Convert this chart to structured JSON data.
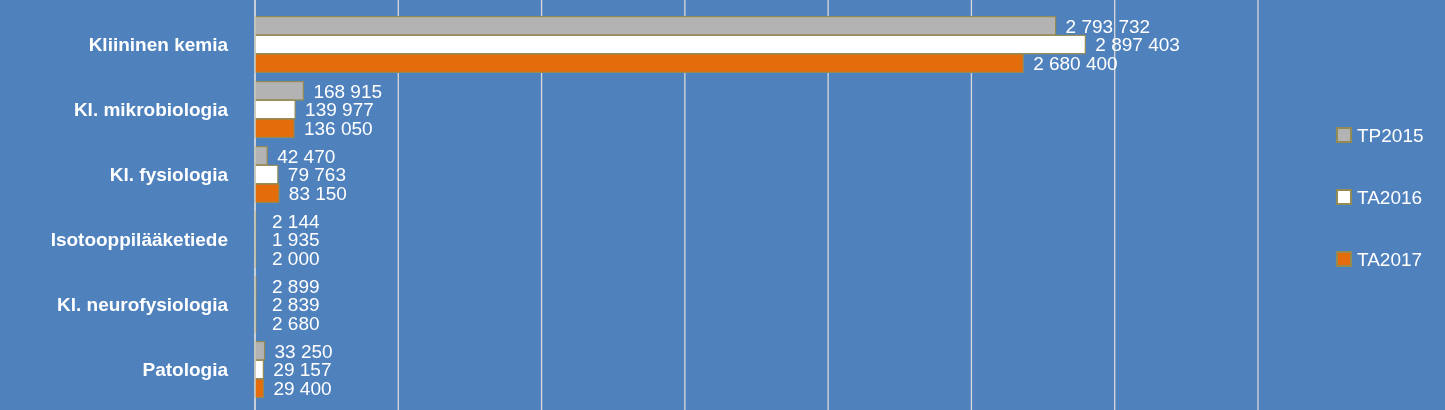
{
  "chart_data": {
    "type": "bar",
    "orientation": "horizontal",
    "categories": [
      "Kliininen kemia",
      "Kl. mikrobiologia",
      "Kl. fysiologia",
      "Isotooppilääketiede",
      "Kl. neurofysiologia",
      "Patologia"
    ],
    "series": [
      {
        "name": "TP2015",
        "color": "#b3b3b3",
        "values": [
          2793732,
          168915,
          42470,
          2144,
          2899,
          33250
        ],
        "value_labels": [
          "2 793 732",
          "168 915",
          "42 470",
          "2 144",
          "2 899",
          "33 250"
        ]
      },
      {
        "name": "TA2016",
        "color": "#ffffff",
        "values": [
          2897403,
          139977,
          79763,
          1935,
          2839,
          29157
        ],
        "value_labels": [
          "2 897 403",
          "139 977",
          "79 763",
          "1 935",
          "2 839",
          "29 157"
        ]
      },
      {
        "name": "TA2017",
        "color": "#e46c0a",
        "values": [
          2680400,
          136050,
          83150,
          2000,
          2680,
          29400
        ],
        "value_labels": [
          "2 680 400",
          "136 050",
          "83 150",
          "2 000",
          "2 680",
          "29 400"
        ]
      }
    ],
    "xlim": [
      0,
      3500000
    ],
    "xticks": [
      {
        "value": 0,
        "label": null
      },
      {
        "value": 500000,
        "label": null
      },
      {
        "value": 1000000,
        "label": null
      },
      {
        "value": 1500000,
        "label": null
      },
      {
        "value": 2000000,
        "label": null
      },
      {
        "value": 2500000,
        "label": null
      },
      {
        "value": 3000000,
        "label": null
      },
      {
        "value": 3500000,
        "label": null
      }
    ],
    "grid": "x",
    "legend": "right",
    "tick_labels": "y"
  }
}
